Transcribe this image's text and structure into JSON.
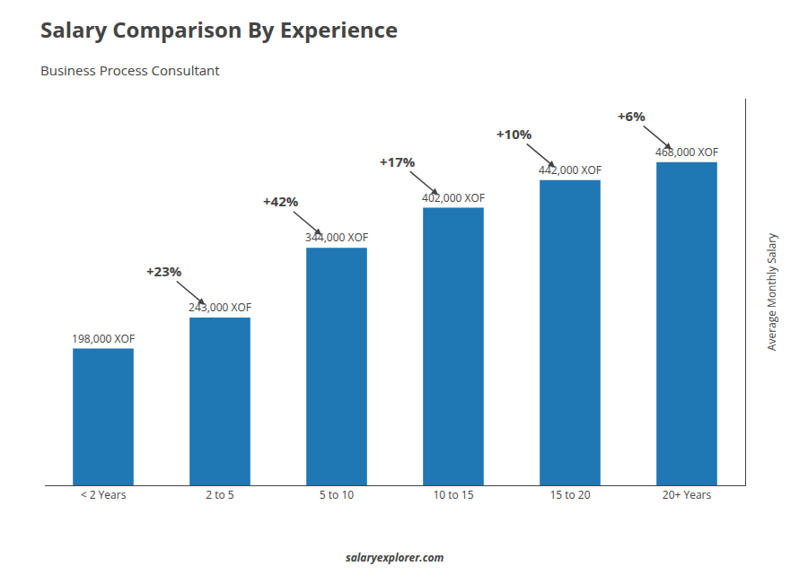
{
  "chart_data": {
    "type": "bar",
    "title": "Salary Comparison By Experience",
    "subtitle": "Business Process Consultant",
    "ylabel": "Average Monthly Salary",
    "categories": [
      "< 2 Years",
      "2 to 5",
      "5 to 10",
      "10 to 15",
      "15 to 20",
      "20+ Years"
    ],
    "values": [
      198000,
      243000,
      344000,
      402000,
      442000,
      468000
    ],
    "value_labels": [
      "198,000 XOF",
      "243,000 XOF",
      "344,000 XOF",
      "402,000 XOF",
      "442,000 XOF",
      "468,000 XOF"
    ],
    "data_labels": true,
    "annotations": [
      "+23%",
      "+42%",
      "+17%",
      "+10%",
      "+6%"
    ],
    "watermark": "salaryexplorer.com",
    "ylim": [
      0,
      560000
    ],
    "yticks": [],
    "tick_labels": "x",
    "grid": false
  }
}
